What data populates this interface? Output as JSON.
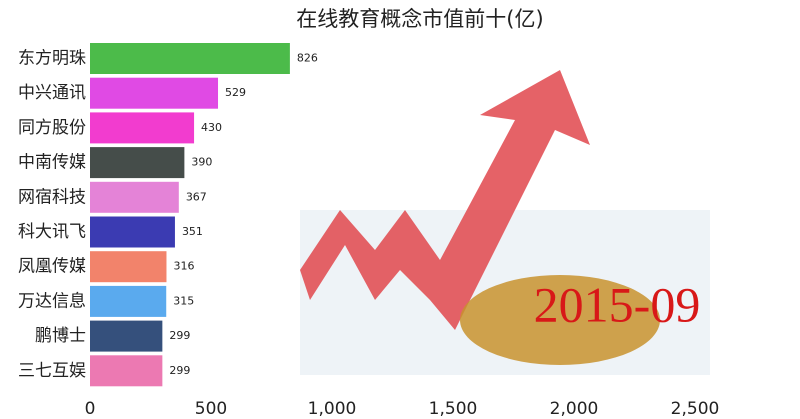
{
  "chart_data": {
    "type": "bar",
    "orientation": "horizontal",
    "title": "在线教育概念市值前十(亿)",
    "annotation": "2015-09",
    "categories": [
      "东方明珠",
      "中兴通讯",
      "同方股份",
      "中南传媒",
      "网宿科技",
      "科大讯飞",
      "凤凰传媒",
      "万达信息",
      "鹏博士",
      "三七互娱"
    ],
    "values": [
      826,
      529,
      430,
      390,
      367,
      351,
      316,
      315,
      299,
      299
    ],
    "colors": [
      "#4cbb4a",
      "#e04ae4",
      "#f23ccf",
      "#454d4a",
      "#e483d7",
      "#3b3bb2",
      "#f2836b",
      "#5aaaee",
      "#35507c",
      "#ec79b2"
    ],
    "xlim": [
      0,
      2500
    ],
    "xticks": [
      0,
      500,
      {
        "value": 1000,
        "label": "1,000"
      },
      {
        "value": 1500,
        "label": "1,500"
      },
      {
        "value": 2000,
        "label": "2,000"
      },
      {
        "value": 2500,
        "label": "2,500"
      }
    ]
  }
}
